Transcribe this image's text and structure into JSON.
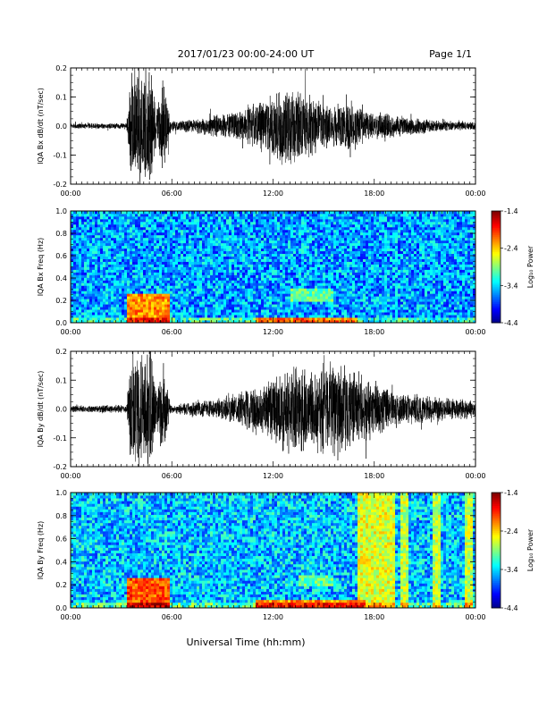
{
  "header": {
    "title": "2017/01/23  00:00-24:00 UT",
    "page": "Page 1/1"
  },
  "footer": {
    "xlabel": "Universal Time (hh:mm)"
  },
  "chart_data": [
    {
      "type": "line",
      "ylabel": "IQA Bx dB/dt (nT/sec)",
      "ylim": [
        -0.2,
        0.2
      ],
      "yticks": [
        "0.2",
        "0.1",
        "0.0",
        "-0.1",
        "-0.2"
      ],
      "xticks": [
        "00:00",
        "06:00",
        "12:00",
        "18:00",
        "00:00"
      ],
      "xlim_hours": [
        0,
        24
      ],
      "seed": 7,
      "activity_envelope": [
        {
          "hour": 0,
          "amp": 0.01
        },
        {
          "hour": 3.3,
          "amp": 0.012
        },
        {
          "hour": 3.6,
          "amp": 0.22
        },
        {
          "hour": 4.8,
          "amp": 0.22
        },
        {
          "hour": 5.1,
          "amp": 0.05
        },
        {
          "hour": 5.5,
          "amp": 0.2
        },
        {
          "hour": 5.9,
          "amp": 0.02
        },
        {
          "hour": 7.0,
          "amp": 0.025
        },
        {
          "hour": 9.5,
          "amp": 0.05
        },
        {
          "hour": 11.0,
          "amp": 0.09
        },
        {
          "hour": 12.0,
          "amp": 0.12
        },
        {
          "hour": 13.0,
          "amp": 0.16
        },
        {
          "hour": 14.0,
          "amp": 0.12
        },
        {
          "hour": 15.5,
          "amp": 0.08
        },
        {
          "hour": 16.5,
          "amp": 0.1
        },
        {
          "hour": 17.5,
          "amp": 0.06
        },
        {
          "hour": 20.0,
          "amp": 0.035
        },
        {
          "hour": 22.0,
          "amp": 0.02
        },
        {
          "hour": 24.0,
          "amp": 0.015
        }
      ]
    },
    {
      "type": "heatmap",
      "ylabel": "IQA Bx Freq (Hz)",
      "ylim": [
        0.0,
        1.0
      ],
      "yticks": [
        "1.0",
        "0.8",
        "0.6",
        "0.4",
        "0.2",
        "0.0"
      ],
      "xticks": [
        "00:00",
        "06:00",
        "12:00",
        "18:00",
        "00:00"
      ],
      "colorbar": {
        "label": "Log₁₀ Power",
        "min": -4.4,
        "max": -1.4,
        "ticks": [
          "-1.4",
          "-2.4",
          "-3.4",
          "-4.4"
        ]
      },
      "seed": 11,
      "background_level": -3.55,
      "features": [
        {
          "hour_start": 3.4,
          "hour_end": 5.9,
          "freq_max": 0.25,
          "level": -2.2
        },
        {
          "hour_start": 11.0,
          "hour_end": 17.0,
          "freq_max": 0.05,
          "level": -2.5
        },
        {
          "hour_start": 13.0,
          "hour_end": 15.5,
          "freq_min": 0.2,
          "freq_max": 0.3,
          "level": -3.0
        }
      ]
    },
    {
      "type": "line",
      "ylabel": "IQA By dB/dt (nT/sec)",
      "ylim": [
        -0.2,
        0.2
      ],
      "yticks": [
        "0.2",
        "0.1",
        "0.0",
        "-0.1",
        "-0.2"
      ],
      "xticks": [
        "00:00",
        "06:00",
        "12:00",
        "18:00",
        "00:00"
      ],
      "xlim_hours": [
        0,
        24
      ],
      "seed": 23,
      "activity_envelope": [
        {
          "hour": 0,
          "amp": 0.012
        },
        {
          "hour": 3.3,
          "amp": 0.015
        },
        {
          "hour": 3.6,
          "amp": 0.22
        },
        {
          "hour": 4.8,
          "amp": 0.22
        },
        {
          "hour": 5.1,
          "amp": 0.06
        },
        {
          "hour": 5.5,
          "amp": 0.2
        },
        {
          "hour": 5.9,
          "amp": 0.02
        },
        {
          "hour": 8.0,
          "amp": 0.03
        },
        {
          "hour": 10.0,
          "amp": 0.06
        },
        {
          "hour": 11.5,
          "amp": 0.11
        },
        {
          "hour": 13.0,
          "amp": 0.17
        },
        {
          "hour": 14.5,
          "amp": 0.15
        },
        {
          "hour": 16.0,
          "amp": 0.2
        },
        {
          "hour": 17.0,
          "amp": 0.14
        },
        {
          "hour": 19.0,
          "amp": 0.07
        },
        {
          "hour": 21.5,
          "amp": 0.045
        },
        {
          "hour": 24.0,
          "amp": 0.035
        }
      ]
    },
    {
      "type": "heatmap",
      "ylabel": "IQA By Freq (Hz)",
      "ylim": [
        0.0,
        1.0
      ],
      "yticks": [
        "1.0",
        "0.8",
        "0.6",
        "0.4",
        "0.2",
        "0.0"
      ],
      "xticks": [
        "00:00",
        "06:00",
        "12:00",
        "18:00",
        "00:00"
      ],
      "colorbar": {
        "label": "Log₁₀ Power",
        "min": -4.4,
        "max": -1.4,
        "ticks": [
          "-1.4",
          "-2.4",
          "-3.4",
          "-4.4"
        ]
      },
      "seed": 31,
      "background_level": -3.45,
      "features": [
        {
          "hour_start": 3.4,
          "hour_end": 5.9,
          "freq_max": 0.25,
          "level": -2.0
        },
        {
          "hour_start": 11.0,
          "hour_end": 17.5,
          "freq_max": 0.06,
          "level": -2.2
        },
        {
          "hour_start": 13.5,
          "hour_end": 15.5,
          "freq_min": 0.18,
          "freq_max": 0.28,
          "level": -3.0
        },
        {
          "hour_start": 17.0,
          "hour_end": 19.2,
          "freq_max": 1.0,
          "level": -2.6
        },
        {
          "hour_start": 19.5,
          "hour_end": 20.0,
          "freq_max": 1.0,
          "level": -2.7
        },
        {
          "hour_start": 21.4,
          "hour_end": 21.9,
          "freq_max": 1.0,
          "level": -2.7
        },
        {
          "hour_start": 23.4,
          "hour_end": 23.8,
          "freq_max": 1.0,
          "level": -2.7
        }
      ]
    }
  ]
}
